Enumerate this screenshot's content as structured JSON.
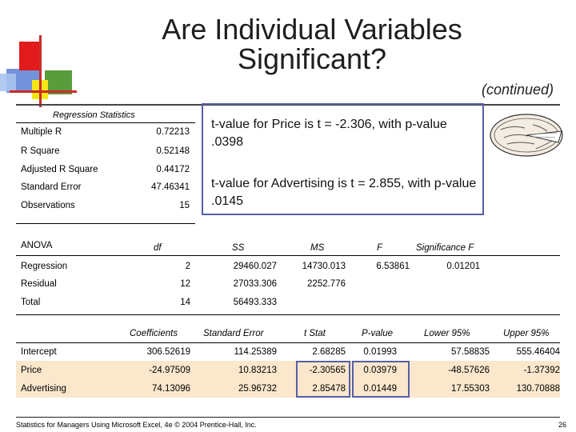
{
  "slide": {
    "title_line1": "Are Individual Variables",
    "title_line2": "Significant?",
    "continued": "(continued)",
    "footer": "Statistics for Managers Using Microsoft Excel, 4e © 2004 Prentice-Hall, Inc.",
    "page_number": "26"
  },
  "regression_statistics": {
    "header": "Regression Statistics",
    "rows": [
      {
        "label": "Multiple R",
        "value": "0.72213"
      },
      {
        "label": "R Square",
        "value": "0.52148"
      },
      {
        "label": "Adjusted R Square",
        "value": "0.44172"
      },
      {
        "label": "Standard Error",
        "value": "47.46341"
      },
      {
        "label": "Observations",
        "value": "15"
      }
    ]
  },
  "callout": {
    "text1": "t-value for Price is  t = -2.306, with p-value .0398",
    "text2": "t-value for Advertising is t = 2.855, with p-value .0145"
  },
  "anova": {
    "label": "ANOVA",
    "headers": {
      "df": "df",
      "ss": "SS",
      "ms": "MS",
      "f": "F",
      "sigf": "Significance F"
    },
    "rows": [
      {
        "name": "Regression",
        "df": "2",
        "ss": "29460.027",
        "ms": "14730.013",
        "f": "6.53861",
        "sigf": "0.01201"
      },
      {
        "name": "Residual",
        "df": "12",
        "ss": "27033.306",
        "ms": "2252.776",
        "f": "",
        "sigf": ""
      },
      {
        "name": "Total",
        "df": "14",
        "ss": "56493.333",
        "ms": "",
        "f": "",
        "sigf": ""
      }
    ]
  },
  "coefficients": {
    "headers": {
      "coef": "Coefficients",
      "se": "Standard Error",
      "t": "t Stat",
      "p": "P-value",
      "lo": "Lower 95%",
      "hi": "Upper 95%"
    },
    "rows": [
      {
        "name": "Intercept",
        "coef": "306.52619",
        "se": "114.25389",
        "t": "2.68285",
        "p": "0.01993",
        "lo": "57.58835",
        "hi": "555.46404"
      },
      {
        "name": "Price",
        "coef": "-24.97509",
        "se": "10.83213",
        "t": "-2.30565",
        "p": "0.03979",
        "lo": "-48.57626",
        "hi": "-1.37392"
      },
      {
        "name": "Advertising",
        "coef": "74.13096",
        "se": "25.96732",
        "t": "2.85478",
        "p": "0.01449",
        "lo": "17.55303",
        "hi": "130.70888"
      }
    ]
  },
  "colors": {
    "accent_blue": "#5560a8",
    "price_row_band": "#fbe7cc",
    "deco_red": "#e11b1b",
    "deco_green": "#5a9c3c",
    "deco_yellow": "#f5e615",
    "deco_blue": "#5a7fd6"
  },
  "icons": [
    "decorative-squares-icon",
    "pie-icon"
  ]
}
